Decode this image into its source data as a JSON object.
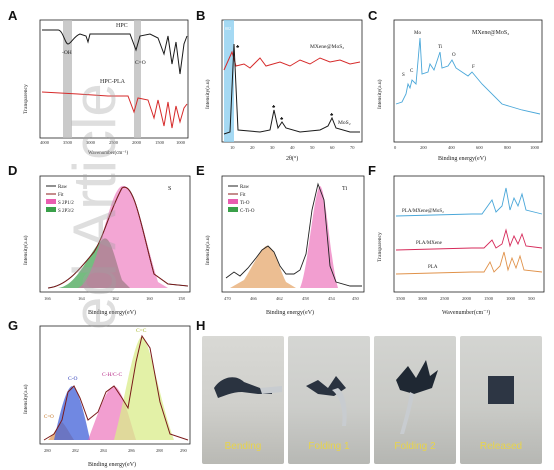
{
  "labels": {
    "a": "A",
    "b": "B",
    "c": "C",
    "d": "D",
    "e": "E",
    "f": "F",
    "g": "G",
    "h": "H"
  },
  "panelA": {
    "ylabel": "Transparency",
    "xlabel": "Wavenumber(cm⁻¹)",
    "hpc": "HPC",
    "hpcpla": "HPC-PLA",
    "oh": "-OH",
    "co": "C=O",
    "ticks": [
      "4000",
      "3500",
      "3000",
      "2500",
      "2000",
      "1500",
      "1000"
    ]
  },
  "panelB": {
    "ylabel": "Intensity(a.u)",
    "xlabel": "2θ(°)",
    "mx": "MXene@MoS₂",
    "mos2": "MoS₂",
    "hl": "002",
    "ticks": [
      "10",
      "20",
      "30",
      "40",
      "50",
      "60",
      "70"
    ]
  },
  "panelC": {
    "ylabel": "Intensity(a.u)",
    "xlabel": "Binding energy(eV)",
    "title": "MXene@MoS₂",
    "mo": "Mo",
    "s": "S",
    "c": "C",
    "ti": "Ti",
    "o": "O",
    "f": "F",
    "ticks": [
      "0",
      "200",
      "400",
      "600",
      "800",
      "1000"
    ]
  },
  "panelD": {
    "ylabel": "Intensity(a.u)",
    "xlabel": "Binding energy(eV)",
    "title": "S",
    "legend": [
      "Raw",
      "Fit",
      "S 2P1/2",
      "S 2P3/2"
    ],
    "ticks": [
      "166",
      "164",
      "162",
      "160",
      "158"
    ]
  },
  "panelE": {
    "ylabel": "Intensity(a.u)",
    "xlabel": "Binding energy(eV)",
    "title": "Ti",
    "legend": [
      "Raw",
      "Fit",
      "Ti-O",
      "C-Ti-O"
    ],
    "ticks": [
      "470",
      "466",
      "462",
      "458",
      "454",
      "450"
    ]
  },
  "panelF": {
    "ylabel": "Transparency",
    "xlabel": "Wavenumber(cm⁻¹)",
    "l1": "PLA/MXene@MoS₂",
    "l2": "PLA/MXene",
    "l3": "PLA",
    "ticks": [
      "3500",
      "3000",
      "2500",
      "2000",
      "1500",
      "1000",
      "500"
    ]
  },
  "panelG": {
    "ylabel": "Intensity(a.u)",
    "xlabel": "Binding energy(eV)",
    "co": "C-O",
    "chc": "C-H/C-C",
    "cc": "C=C",
    "coo": "C=O",
    "ticks": [
      "280",
      "282",
      "284",
      "286",
      "288",
      "290"
    ]
  },
  "panelH": {
    "photos": [
      "Bending",
      "Folding 1",
      "Folding 2",
      "Released"
    ]
  },
  "watermark": "ed Article",
  "colors": {
    "black": "#1a1a1a",
    "red": "#d62a2a",
    "blue": "#4aa7d9",
    "pink": "#e95db0",
    "orange": "#e0924a",
    "green": "#3aa04a",
    "yellow": "#e6d44a"
  }
}
